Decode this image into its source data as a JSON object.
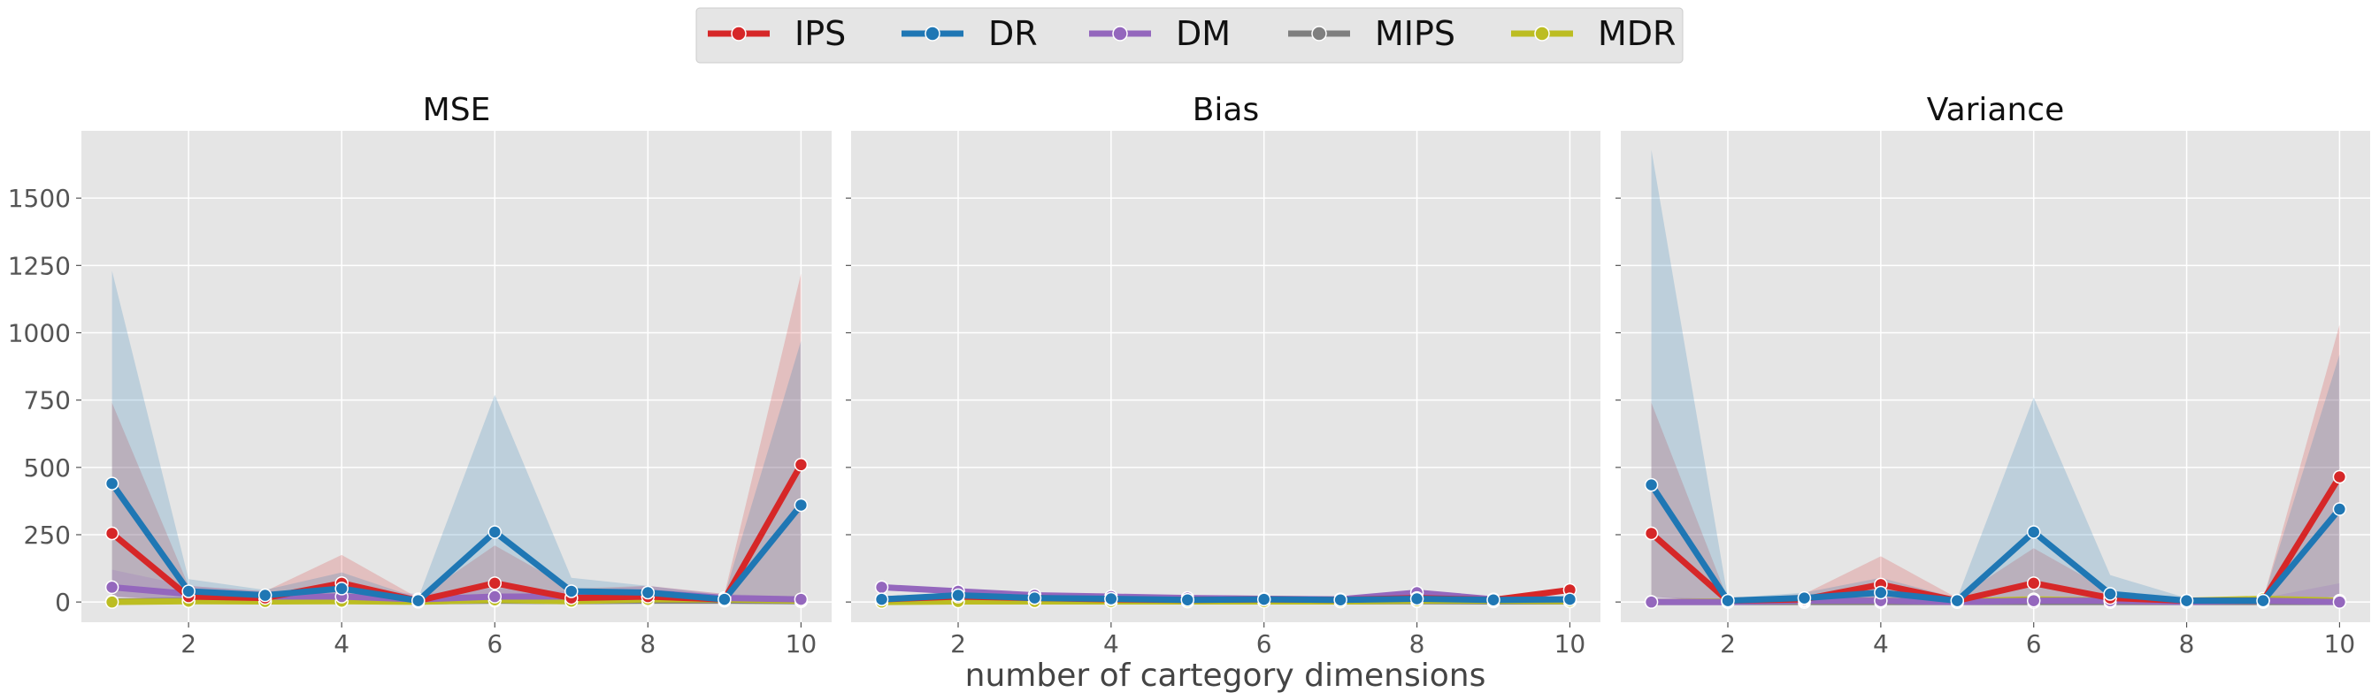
{
  "chart_data": {
    "type": "line",
    "xlabel": "number of cartegory dimensions",
    "x": [
      1,
      2,
      3,
      4,
      5,
      6,
      7,
      8,
      9,
      10
    ],
    "xticks": [
      2,
      4,
      6,
      8,
      10
    ],
    "xlim": [
      0.6,
      10.4
    ],
    "ylim": [
      -75,
      1750
    ],
    "yticks": [
      0,
      250,
      500,
      750,
      1000,
      1250,
      1500
    ],
    "grid": true,
    "shared_y": true,
    "legend": {
      "placement": "top-center",
      "entries": [
        {
          "name": "IPS",
          "color": "#d62728"
        },
        {
          "name": "DR",
          "color": "#1f77b4"
        },
        {
          "name": "DM",
          "color": "#9467bd"
        },
        {
          "name": "MIPS",
          "color": "#7f7f7f"
        },
        {
          "name": "MDR",
          "color": "#bcbd22"
        }
      ]
    },
    "panels": [
      {
        "title": "MSE",
        "series": [
          {
            "name": "IPS",
            "color": "#d62728",
            "values": [
              255,
              20,
              15,
              70,
              5,
              70,
              15,
              20,
              10,
              510
            ],
            "lower": [
              20,
              5,
              5,
              10,
              0,
              5,
              5,
              5,
              5,
              20
            ],
            "upper": [
              740,
              60,
              40,
              175,
              15,
              210,
              50,
              60,
              30,
              1220
            ]
          },
          {
            "name": "DR",
            "color": "#1f77b4",
            "values": [
              440,
              40,
              25,
              50,
              5,
              260,
              40,
              35,
              10,
              360
            ],
            "lower": [
              20,
              10,
              5,
              10,
              0,
              10,
              10,
              10,
              5,
              20
            ],
            "upper": [
              1230,
              85,
              45,
              110,
              15,
              770,
              90,
              60,
              25,
              970
            ]
          },
          {
            "name": "DM",
            "color": "#9467bd",
            "values": [
              55,
              30,
              20,
              20,
              10,
              20,
              20,
              35,
              15,
              10
            ],
            "lower": [
              20,
              10,
              5,
              5,
              0,
              5,
              5,
              10,
              5,
              5
            ],
            "upper": [
              120,
              60,
              40,
              50,
              30,
              50,
              40,
              60,
              30,
              20
            ]
          },
          {
            "name": "MIPS",
            "color": "#7f7f7f",
            "values": [
              2,
              5,
              3,
              5,
              2,
              5,
              3,
              5,
              5,
              3
            ]
          },
          {
            "name": "MDR",
            "color": "#bcbd22",
            "values": [
              0,
              3,
              2,
              3,
              1,
              8,
              3,
              10,
              10,
              5
            ]
          }
        ]
      },
      {
        "title": "Bias",
        "series": [
          {
            "name": "IPS",
            "color": "#d62728",
            "values": [
              10,
              20,
              15,
              10,
              8,
              10,
              8,
              15,
              8,
              45
            ]
          },
          {
            "name": "DR",
            "color": "#1f77b4",
            "values": [
              10,
              25,
              15,
              12,
              8,
              10,
              8,
              12,
              8,
              10
            ]
          },
          {
            "name": "DM",
            "color": "#9467bd",
            "values": [
              55,
              40,
              25,
              20,
              15,
              12,
              10,
              35,
              10,
              10
            ]
          },
          {
            "name": "MIPS",
            "color": "#7f7f7f",
            "values": [
              2,
              3,
              2,
              3,
              2,
              3,
              2,
              3,
              2,
              2
            ]
          },
          {
            "name": "MDR",
            "color": "#bcbd22",
            "values": [
              0,
              2,
              2,
              2,
              2,
              2,
              2,
              5,
              5,
              3
            ]
          }
        ]
      },
      {
        "title": "Variance",
        "series": [
          {
            "name": "IPS",
            "color": "#d62728",
            "values": [
              255,
              5,
              10,
              65,
              5,
              70,
              15,
              5,
              5,
              465
            ],
            "lower": [
              20,
              0,
              0,
              10,
              0,
              5,
              0,
              0,
              0,
              20
            ],
            "upper": [
              740,
              10,
              30,
              170,
              15,
              200,
              40,
              15,
              10,
              1030
            ]
          },
          {
            "name": "DR",
            "color": "#1f77b4",
            "values": [
              435,
              5,
              15,
              35,
              5,
              260,
              30,
              5,
              5,
              345
            ],
            "lower": [
              20,
              0,
              0,
              5,
              0,
              10,
              5,
              0,
              0,
              20
            ],
            "upper": [
              1680,
              15,
              35,
              90,
              15,
              760,
              100,
              15,
              10,
              920
            ]
          },
          {
            "name": "DM",
            "color": "#9467bd",
            "values": [
              0,
              0,
              5,
              5,
              0,
              5,
              5,
              0,
              5,
              0
            ],
            "lower": [
              0,
              0,
              0,
              0,
              0,
              0,
              0,
              0,
              0,
              0
            ],
            "upper": [
              20,
              10,
              20,
              20,
              10,
              20,
              20,
              10,
              15,
              70
            ]
          },
          {
            "name": "MIPS",
            "color": "#7f7f7f",
            "values": [
              0,
              0,
              0,
              0,
              0,
              0,
              0,
              0,
              0,
              0
            ]
          },
          {
            "name": "MDR",
            "color": "#bcbd22",
            "values": [
              0,
              2,
              5,
              5,
              2,
              10,
              5,
              5,
              12,
              5
            ]
          }
        ]
      }
    ]
  }
}
